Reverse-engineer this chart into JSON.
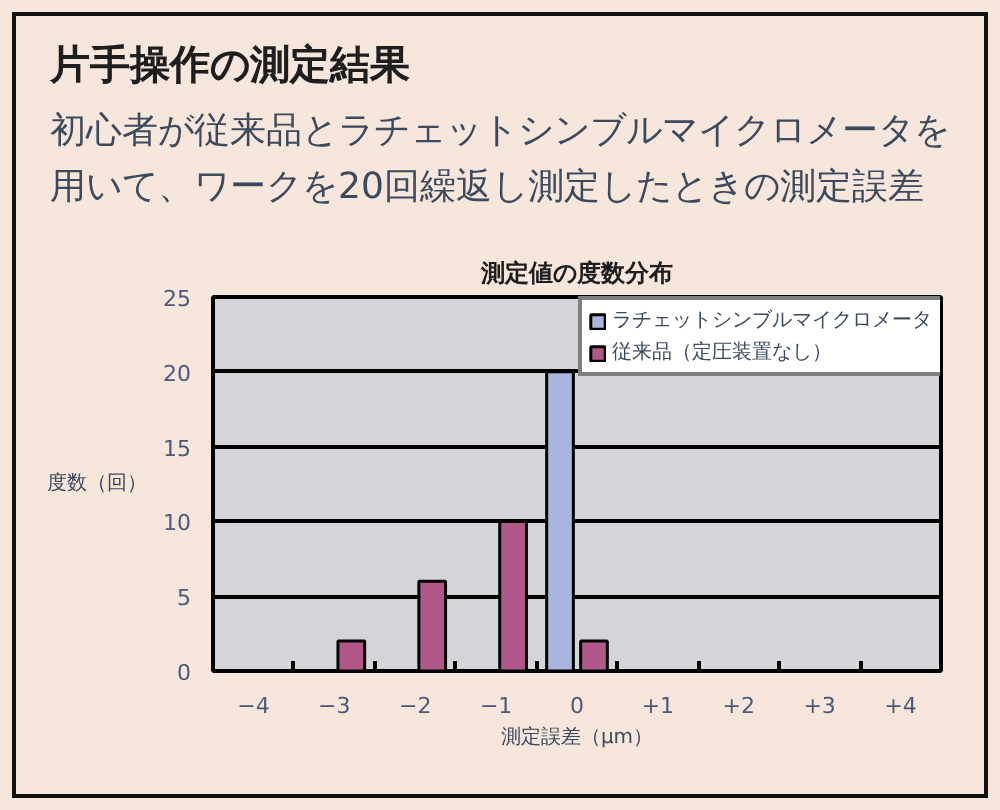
{
  "chart_data": {
    "type": "bar",
    "title": "片手操作の測定結果",
    "subtitle": "初心者が従来品とラチェットシンブルマイクロメータを用いて、ワークを20回繰返し測定したときの測定誤差",
    "annotations": [
      "測定値の度数分布"
    ],
    "xlabel": "測定誤差（μm）",
    "ylabel": "度数（回）",
    "categories": [
      "−4",
      "−3",
      "−2",
      "−1",
      "0",
      "+1",
      "+2",
      "+3",
      "+4"
    ],
    "series": [
      {
        "name": "ラチェットシンブルマイクロメータ",
        "color": "#aab4dc",
        "values": [
          null,
          null,
          null,
          null,
          20,
          null,
          null,
          null,
          null
        ]
      },
      {
        "name": "従来品（定圧装置なし）",
        "color": "#b0588a",
        "values": [
          null,
          2,
          6,
          10,
          2,
          null,
          null,
          null,
          null
        ]
      }
    ],
    "ylim": [
      0,
      25
    ],
    "yticks": [
      0,
      5,
      10,
      15,
      20,
      25
    ],
    "grid": "y",
    "legend": "top right"
  }
}
